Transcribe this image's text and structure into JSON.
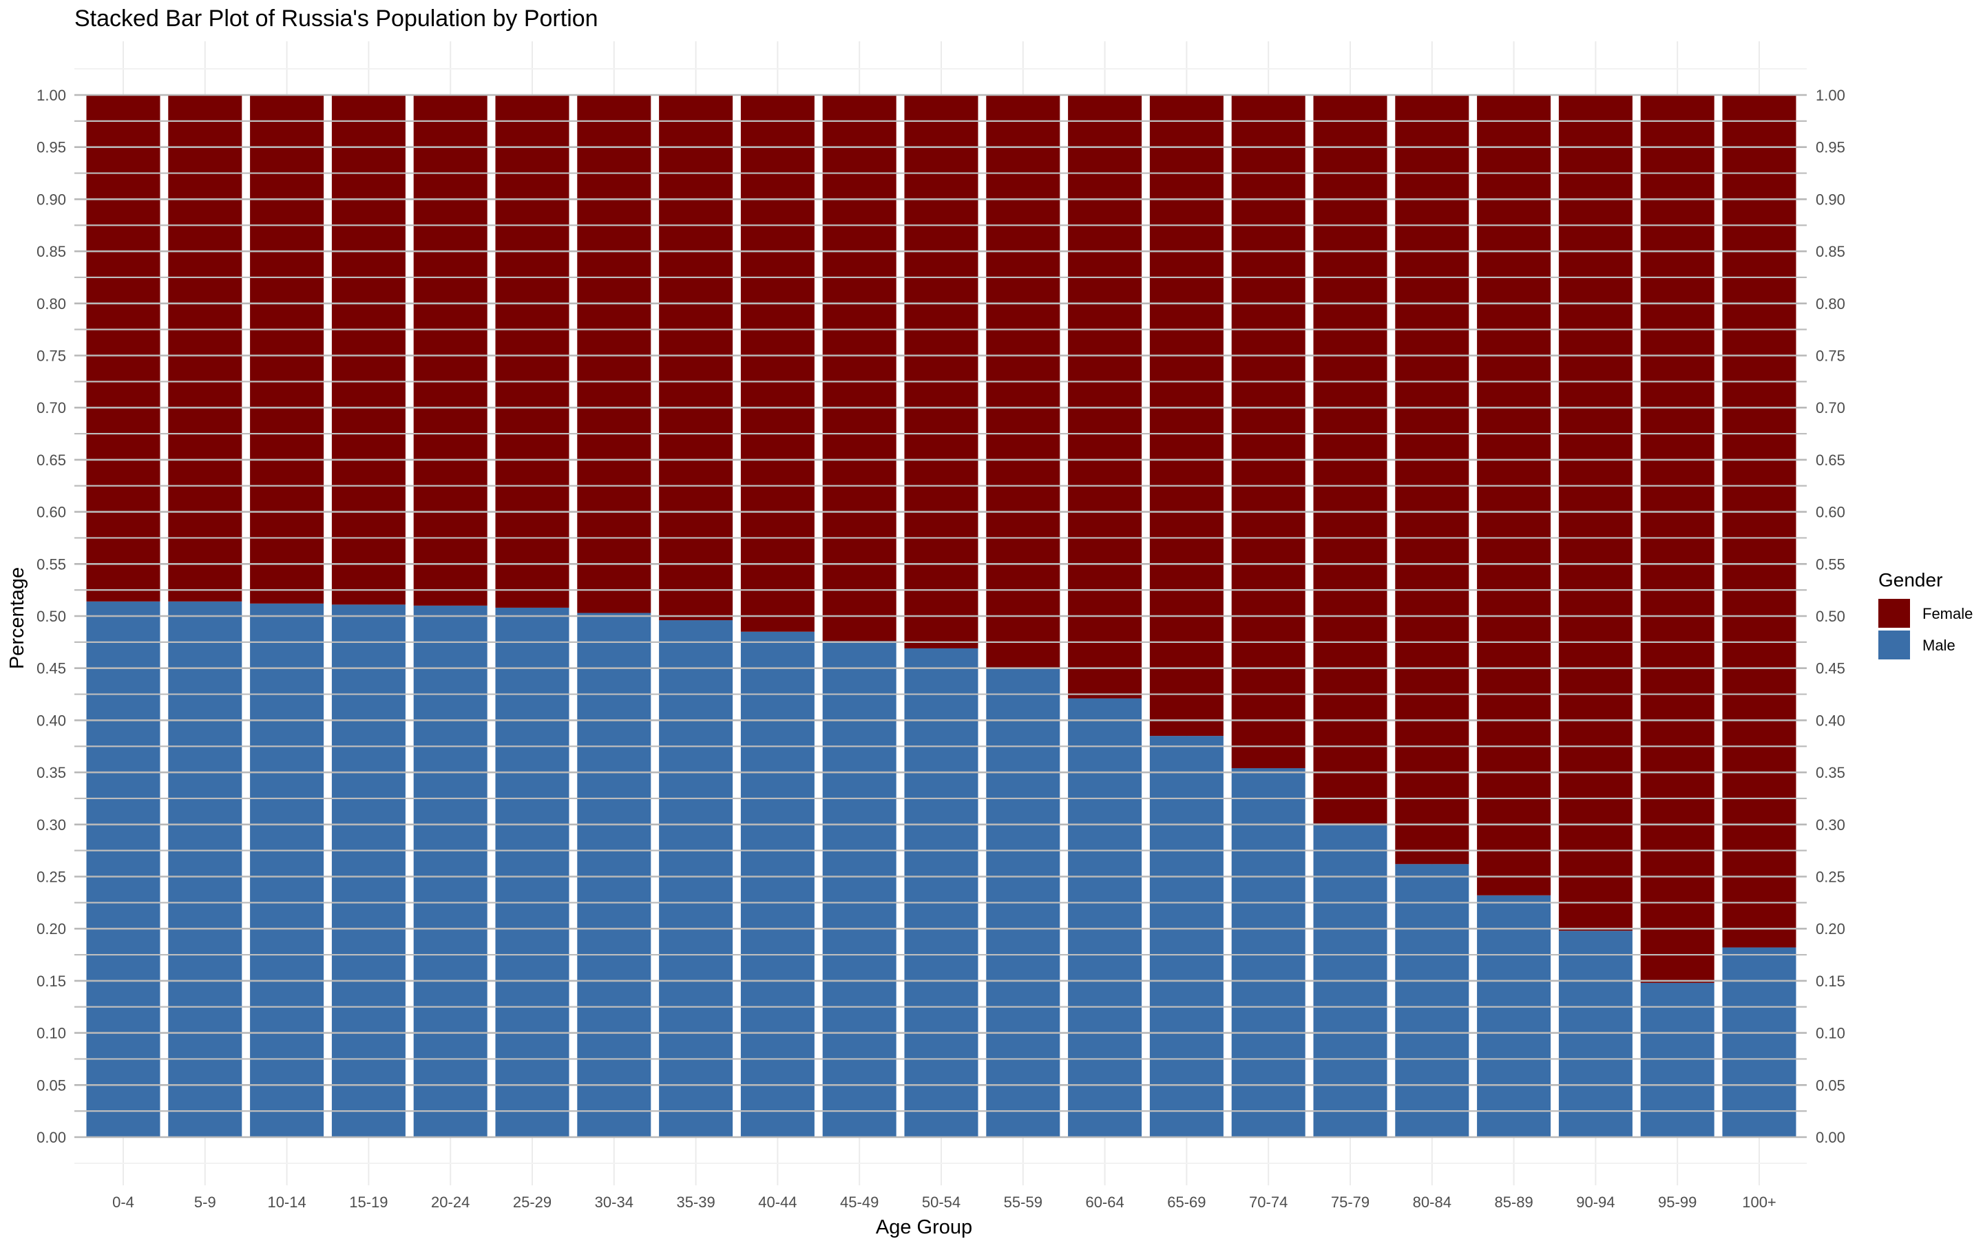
{
  "chart_data": {
    "type": "bar",
    "stacked": true,
    "title": "Stacked Bar Plot of Russia's Population by Portion",
    "xlabel": "Age Group",
    "ylabel": "Percentage",
    "ylim": [
      0,
      1
    ],
    "yticks": [
      "0.00",
      "0.05",
      "0.10",
      "0.15",
      "0.20",
      "0.25",
      "0.30",
      "0.35",
      "0.40",
      "0.45",
      "0.50",
      "0.55",
      "0.60",
      "0.65",
      "0.70",
      "0.75",
      "0.80",
      "0.85",
      "0.90",
      "0.95",
      "1.00"
    ],
    "grid": true,
    "legend_position": "right",
    "legend_title": "Gender",
    "categories": [
      "0-4",
      "5-9",
      "10-14",
      "15-19",
      "20-24",
      "25-29",
      "30-34",
      "35-39",
      "40-44",
      "45-49",
      "50-54",
      "55-59",
      "60-64",
      "65-69",
      "70-74",
      "75-79",
      "80-84",
      "85-89",
      "90-94",
      "95-99",
      "100+"
    ],
    "series": [
      {
        "name": "Male",
        "color": "#3A6EA8",
        "values": [
          0.514,
          0.514,
          0.512,
          0.511,
          0.51,
          0.508,
          0.503,
          0.496,
          0.485,
          0.476,
          0.469,
          0.45,
          0.421,
          0.385,
          0.354,
          0.301,
          0.262,
          0.232,
          0.198,
          0.148,
          0.182
        ]
      },
      {
        "name": "Female",
        "color": "#770000",
        "values": [
          0.486,
          0.486,
          0.488,
          0.489,
          0.49,
          0.492,
          0.497,
          0.504,
          0.515,
          0.524,
          0.531,
          0.55,
          0.579,
          0.615,
          0.646,
          0.699,
          0.738,
          0.768,
          0.802,
          0.852,
          0.818
        ]
      }
    ],
    "legend_order": [
      "Female",
      "Male"
    ]
  }
}
